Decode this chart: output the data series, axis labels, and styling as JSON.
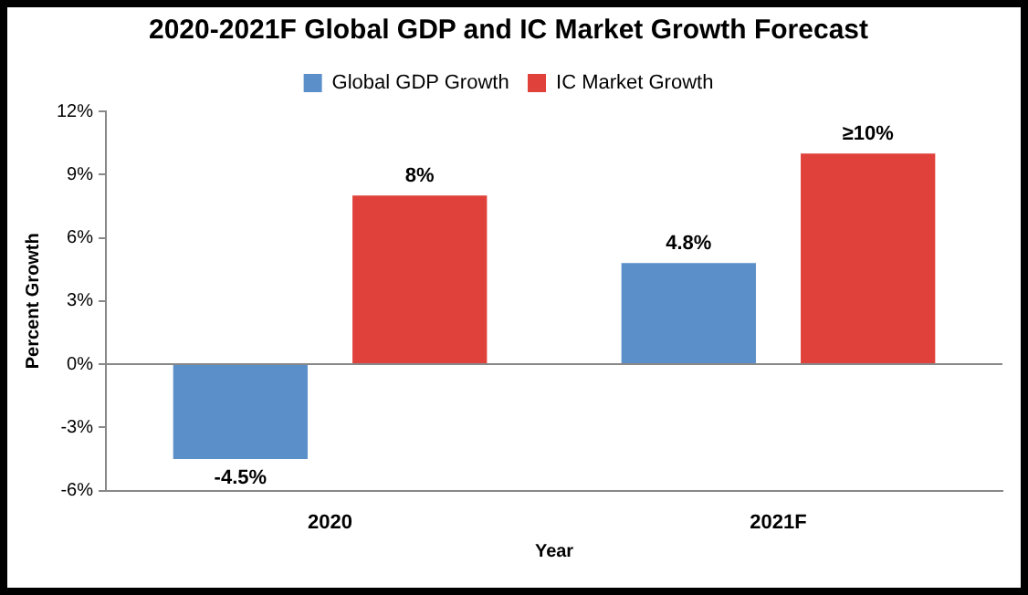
{
  "chart_data": {
    "type": "bar",
    "title": "2020-2021F Global GDP and IC Market Growth Forecast",
    "xlabel": "Year",
    "ylabel": "Percent Growth",
    "categories": [
      "2020",
      "2021F"
    ],
    "series": [
      {
        "name": "Global GDP Growth",
        "color": "#5b8fc9",
        "values": [
          -4.5,
          4.8
        ],
        "value_labels": [
          "-4.5%",
          "4.8%"
        ]
      },
      {
        "name": "IC Market Growth",
        "color": "#e0413a",
        "values": [
          8,
          10
        ],
        "value_labels": [
          "8%",
          "≥10%"
        ]
      }
    ],
    "ylim": [
      -6,
      12
    ],
    "yticks": [
      {
        "value": -6,
        "label": "-6%"
      },
      {
        "value": -3,
        "label": "-3%"
      },
      {
        "value": 0,
        "label": "0%"
      },
      {
        "value": 3,
        "label": "3%"
      },
      {
        "value": 6,
        "label": "6%"
      },
      {
        "value": 9,
        "label": "9%"
      },
      {
        "value": 12,
        "label": "12%"
      }
    ],
    "legend": "top"
  }
}
